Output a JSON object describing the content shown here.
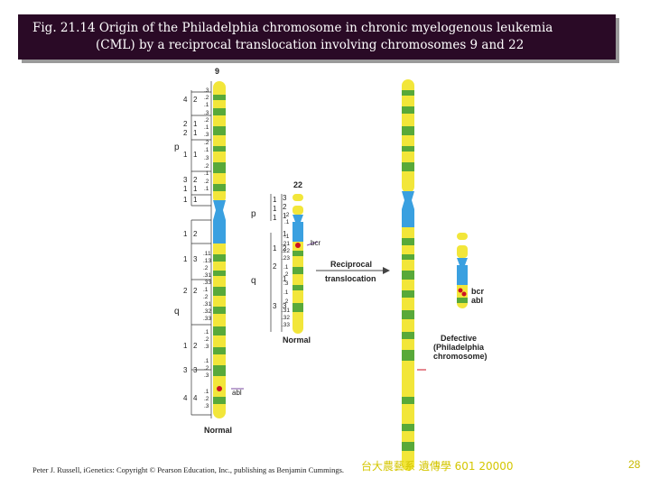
{
  "title": {
    "line1": "Fig. 21.14  Origin of the Philadelphia chromosome in chronic myelogenous leukemia",
    "line2": "(CML) by a reciprocal translocation involving chromosomes 9 and 22"
  },
  "diagram": {
    "chr9_label": "9",
    "chr22_label": "22",
    "arm_p": "p",
    "arm_q": "q",
    "normal_label_22": "Normal",
    "normal_label_9": "Normal",
    "bcr_label": "bcr",
    "abl_label": "abl",
    "bcr_label_ph": "bcr",
    "abl_label_ph": "abl",
    "translocation_line1": "Reciprocal",
    "translocation_line2": "translocation",
    "defective_line1": "Defective",
    "defective_line2": "(Philadelphia",
    "defective_line3": "chromosome)",
    "defective_label_bottom": "Defective"
  },
  "footer": {
    "credit": "Peter J. Russell, iGenetics: Copyright © Pearson Education, Inc., publishing as Benjamin Cummings.",
    "chinese": "台大農藝系 遺傳學 601 20000",
    "page": "28"
  },
  "colors": {
    "title_bg": "#2a0a26",
    "band_yellow": "#f2e63a",
    "band_green": "#58a93a",
    "centromere_blue": "#3aa0e0",
    "marker_red": "#cc1122"
  }
}
